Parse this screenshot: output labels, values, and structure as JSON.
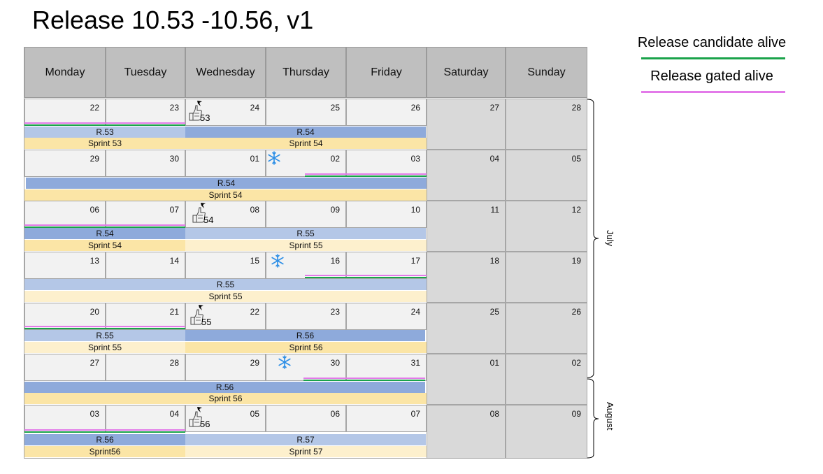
{
  "title": "Release 10.53 -10.56, v1",
  "legend": {
    "candidate": {
      "label": "Release candidate alive",
      "color": "#1aa34a"
    },
    "gated": {
      "label": "Release gated alive",
      "color": "#e37ae9"
    }
  },
  "days": [
    "Monday",
    "Tuesday",
    "Wednesday",
    "Thursday",
    "Friday",
    "Saturday",
    "Sunday"
  ],
  "weeks": [
    {
      "dates": [
        "22",
        "23",
        "24",
        "25",
        "26",
        "27",
        "28"
      ],
      "releases": [
        {
          "label": "R.53"
        },
        {
          "label": "R.54"
        }
      ],
      "sprints": [
        {
          "label": "Sprint 53"
        },
        {
          "label": "Sprint 54"
        }
      ],
      "vote_number": "53"
    },
    {
      "dates": [
        "29",
        "30",
        "01",
        "02",
        "03",
        "04",
        "05"
      ],
      "releases": [
        {
          "label": "R.54"
        }
      ],
      "sprints": [
        {
          "label": "Sprint 54"
        }
      ]
    },
    {
      "dates": [
        "06",
        "07",
        "08",
        "09",
        "10",
        "11",
        "12"
      ],
      "releases": [
        {
          "label": "R.54"
        },
        {
          "label": "R.55"
        }
      ],
      "sprints": [
        {
          "label": "Sprint 54"
        },
        {
          "label": "Sprint 55"
        }
      ],
      "vote_number": "54"
    },
    {
      "dates": [
        "13",
        "14",
        "15",
        "16",
        "17",
        "18",
        "19"
      ],
      "releases": [
        {
          "label": "R.55"
        }
      ],
      "sprints": [
        {
          "label": "Sprint 55"
        }
      ]
    },
    {
      "dates": [
        "20",
        "21",
        "22",
        "23",
        "24",
        "25",
        "26"
      ],
      "releases": [
        {
          "label": "R.55"
        },
        {
          "label": "R.56"
        }
      ],
      "sprints": [
        {
          "label": "Sprint 55"
        },
        {
          "label": "Sprint 56"
        }
      ],
      "vote_number": "55"
    },
    {
      "dates": [
        "27",
        "28",
        "29",
        "30",
        "31",
        "01",
        "02"
      ],
      "releases": [
        {
          "label": "R.56"
        }
      ],
      "sprints": [
        {
          "label": "Sprint 56"
        }
      ]
    },
    {
      "dates": [
        "03",
        "04",
        "05",
        "06",
        "07",
        "08",
        "09"
      ],
      "releases": [
        {
          "label": "R.56"
        },
        {
          "label": "R.57"
        }
      ],
      "sprints": [
        {
          "label": "Sprint56"
        },
        {
          "label": "Sprint 57"
        }
      ],
      "vote_number": "56"
    }
  ],
  "months": [
    "July",
    "August"
  ]
}
